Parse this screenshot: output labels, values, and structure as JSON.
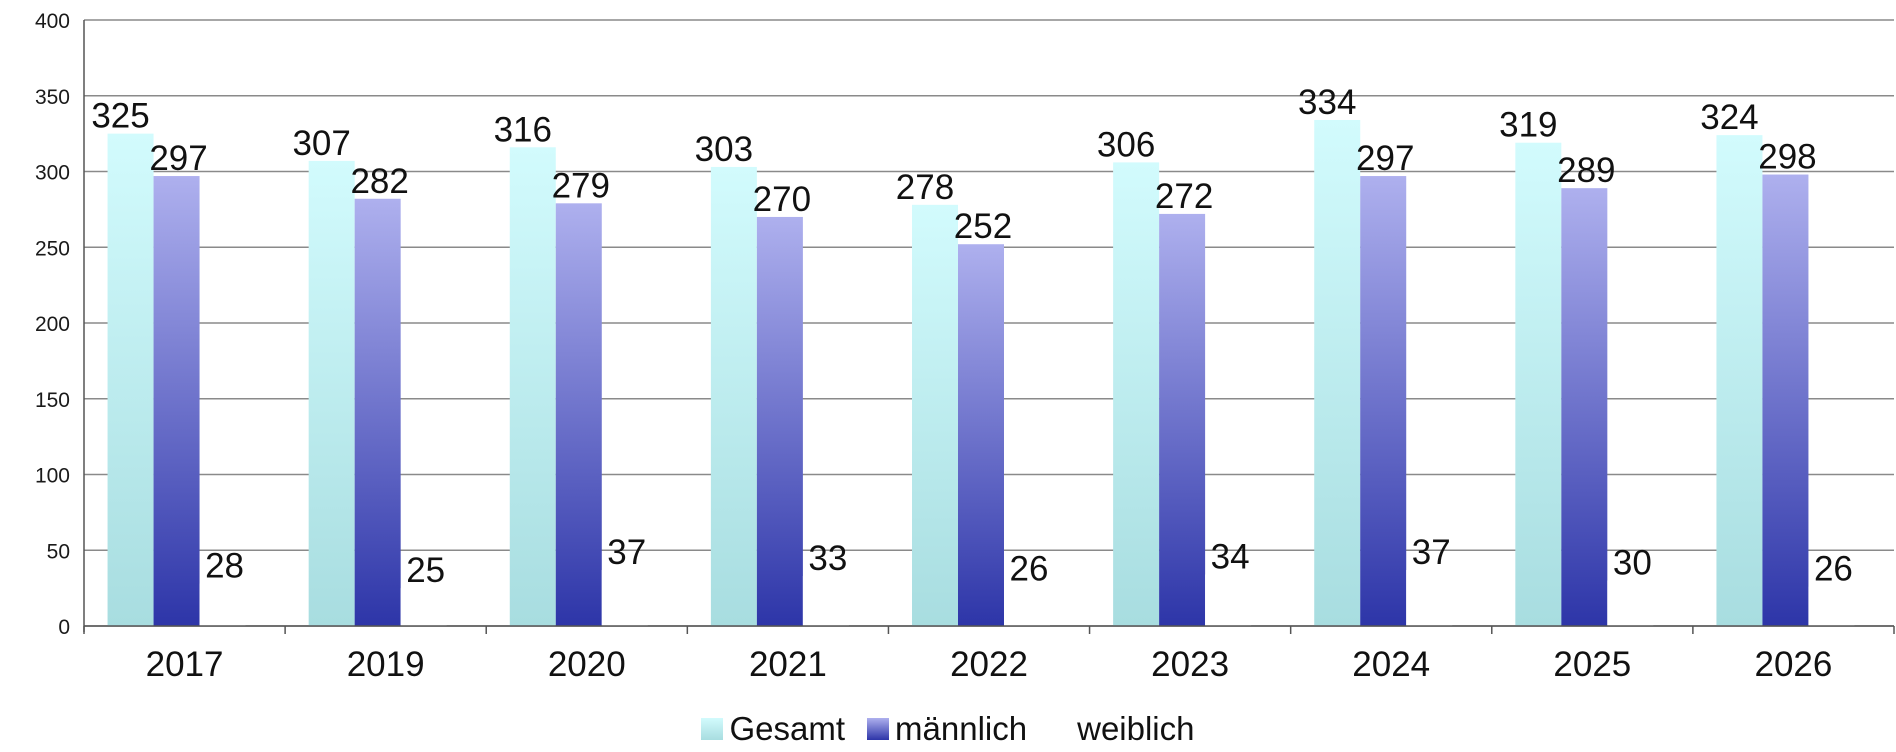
{
  "chart_data": {
    "type": "bar",
    "title": "",
    "xlabel": "",
    "ylabel": "",
    "ylim": [
      0,
      400
    ],
    "yticks": [
      0,
      50,
      100,
      150,
      200,
      250,
      300,
      350,
      400
    ],
    "grid": true,
    "legend_position": "bottom",
    "categories": [
      "2017",
      "2019",
      "2020",
      "2021",
      "2022",
      "2023",
      "2024",
      "2025",
      "2026"
    ],
    "highlight_category": "2026",
    "highlight_label_color": "#ff0000",
    "series": [
      {
        "name": "Gesamt",
        "values": [
          325,
          307,
          316,
          303,
          278,
          306,
          334,
          319,
          324
        ],
        "color_top": "#d2fbfd",
        "color_bottom": "#a8dde0"
      },
      {
        "name": "männlich",
        "values": [
          297,
          282,
          279,
          270,
          252,
          272,
          297,
          289,
          298
        ],
        "color_top": "#aeb0ee",
        "color_bottom": "#2d35a8"
      },
      {
        "name": "weiblich",
        "values": [
          28,
          25,
          37,
          33,
          26,
          34,
          37,
          30,
          26
        ],
        "color_top": "#ffffff",
        "color_bottom": "#ffffff"
      }
    ]
  }
}
